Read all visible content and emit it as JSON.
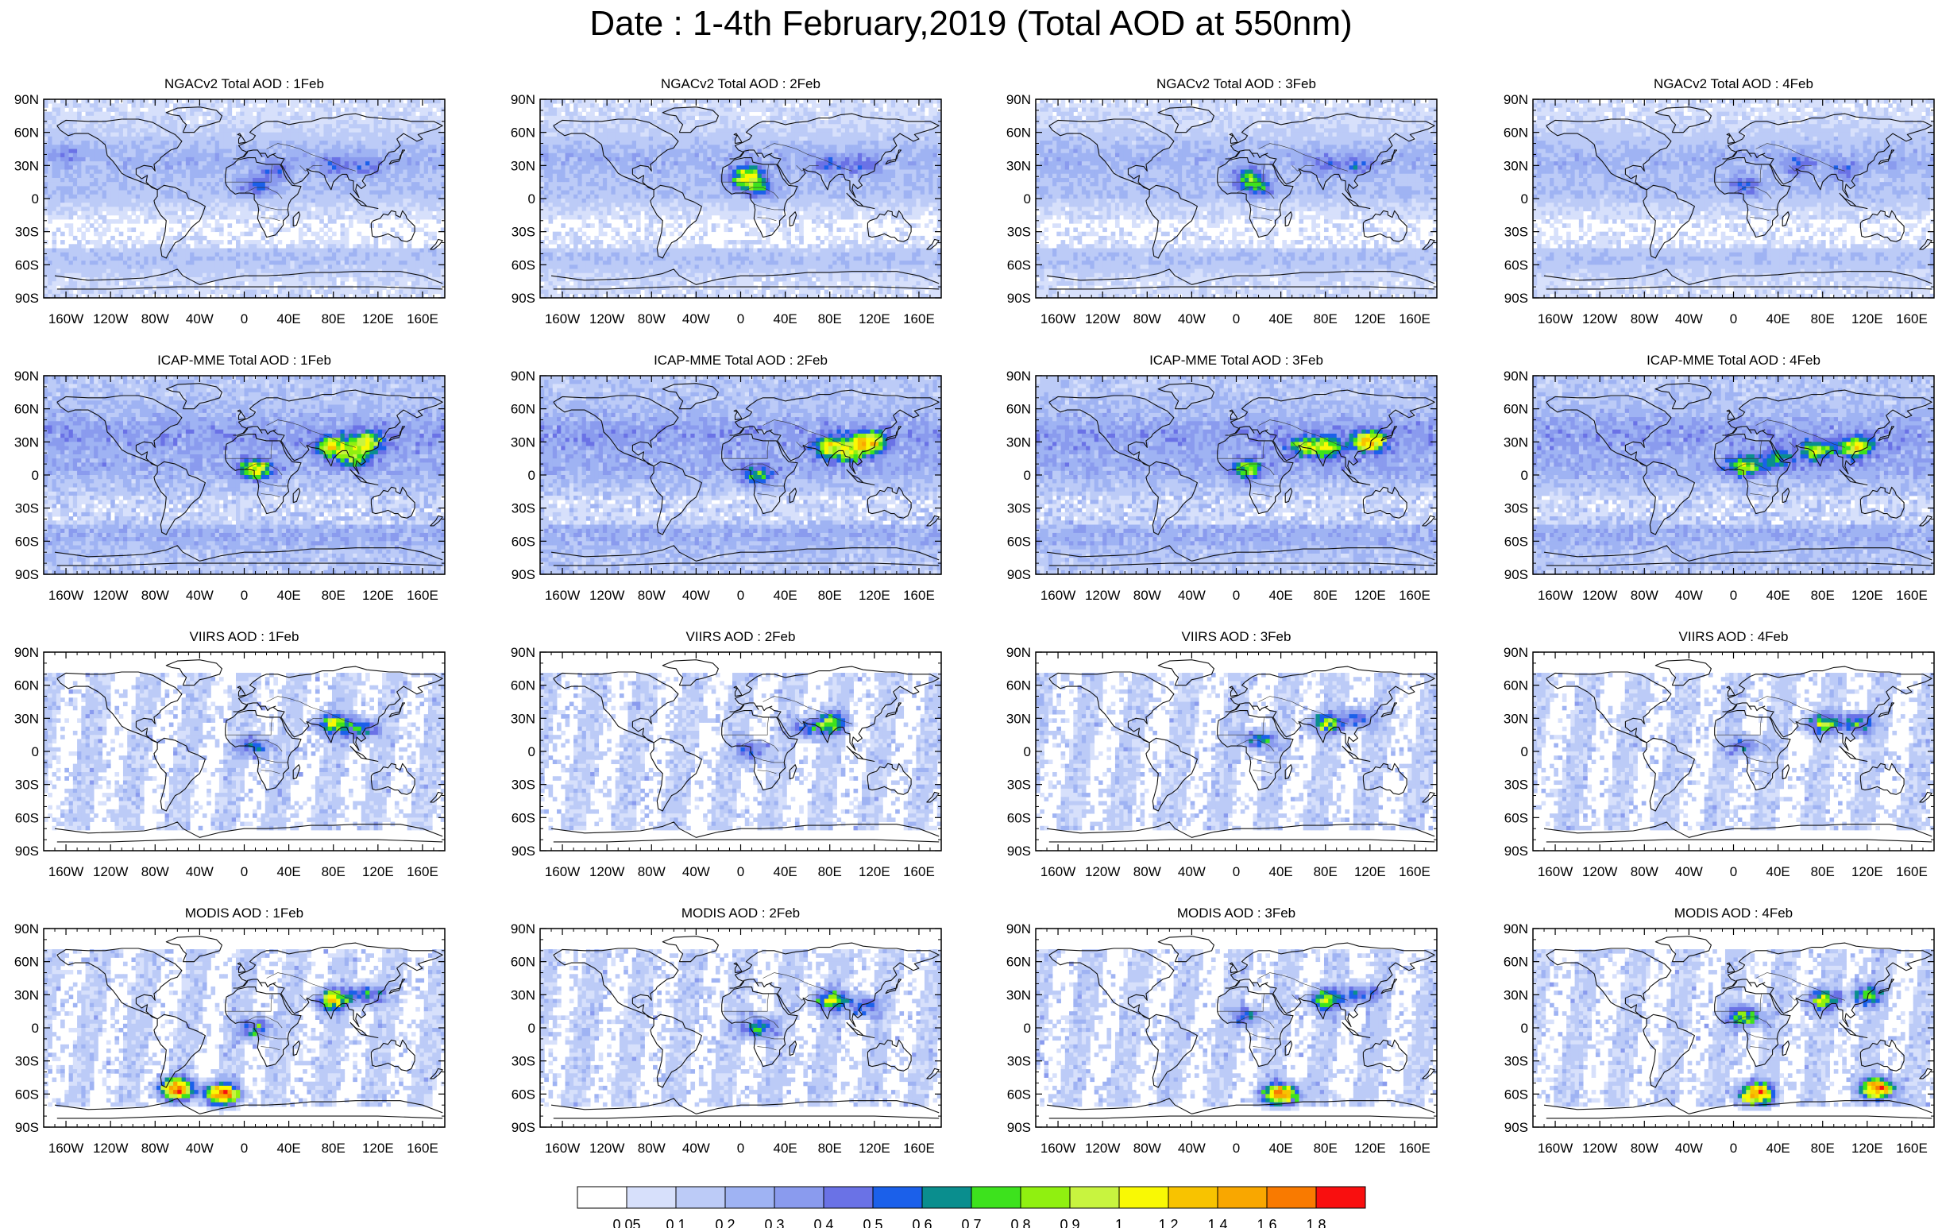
{
  "figure": {
    "title": "Date : 1-4th February,2019 (Total AOD at 550nm)"
  },
  "panels": {
    "lat_labels": [
      "90N",
      "60N",
      "30N",
      "0",
      "30S",
      "60S",
      "90S"
    ],
    "lon_labels": [
      "160W",
      "120W",
      "80W",
      "40W",
      "0",
      "40E",
      "80E",
      "120E",
      "160E"
    ],
    "lat_values": [
      90,
      60,
      30,
      0,
      -30,
      -60,
      -90
    ],
    "lon_values": [
      -160,
      -120,
      -80,
      -40,
      0,
      40,
      80,
      120,
      160
    ],
    "rows": [
      {
        "product": "NGACv2",
        "titles": [
          "NGACv2 Total AOD : 1Feb",
          "NGACv2 Total AOD : 2Feb",
          "NGACv2 Total AOD : 3Feb",
          "NGACv2 Total AOD : 4Feb"
        ],
        "background_level": 0.1,
        "fill": "continuous",
        "hotspots": [
          [
            [
              10,
              12,
              0.4
            ],
            [
              30,
              25,
              0.3
            ],
            [
              80,
              30,
              0.3
            ],
            [
              110,
              28,
              0.3
            ],
            [
              -160,
              40,
              0.2
            ]
          ],
          [
            [
              5,
              20,
              1.0
            ],
            [
              15,
              10,
              0.5
            ],
            [
              80,
              30,
              0.3
            ],
            [
              110,
              30,
              0.3
            ]
          ],
          [
            [
              10,
              18,
              0.6
            ],
            [
              20,
              10,
              0.4
            ],
            [
              80,
              30,
              0.3
            ],
            [
              110,
              30,
              0.3
            ]
          ],
          [
            [
              10,
              12,
              0.4
            ],
            [
              60,
              30,
              0.3
            ],
            [
              100,
              25,
              0.3
            ]
          ]
        ]
      },
      {
        "product": "ICAP-MME",
        "titles": [
          "ICAP-MME Total AOD : 1Feb",
          "ICAP-MME Total AOD : 2Feb",
          "ICAP-MME Total AOD : 3Feb",
          "ICAP-MME Total AOD : 4Feb"
        ],
        "background_level": 0.2,
        "fill": "continuous",
        "hotspots": [
          [
            [
              10,
              5,
              0.9
            ],
            [
              80,
              25,
              1.0
            ],
            [
              110,
              30,
              0.9
            ],
            [
              100,
              15,
              0.6
            ]
          ],
          [
            [
              15,
              0,
              0.6
            ],
            [
              80,
              25,
              0.9
            ],
            [
              115,
              30,
              1.2
            ],
            [
              100,
              20,
              0.7
            ]
          ],
          [
            [
              10,
              5,
              0.7
            ],
            [
              80,
              25,
              0.8
            ],
            [
              120,
              30,
              1.2
            ],
            [
              60,
              25,
              0.6
            ]
          ],
          [
            [
              10,
              8,
              0.9
            ],
            [
              75,
              22,
              0.8
            ],
            [
              110,
              25,
              0.9
            ],
            [
              40,
              15,
              0.5
            ]
          ]
        ]
      },
      {
        "product": "VIIRS",
        "titles": [
          "VIIRS AOD : 1Feb",
          "VIIRS AOD : 2Feb",
          "VIIRS AOD : 3Feb",
          "VIIRS AOD : 4Feb"
        ],
        "background_level": 0.05,
        "fill": "swath",
        "hotspots": [
          [
            [
              80,
              25,
              1.0
            ],
            [
              105,
              20,
              0.7
            ],
            [
              10,
              5,
              0.6
            ]
          ],
          [
            [
              80,
              25,
              0.9
            ],
            [
              10,
              0,
              0.6
            ],
            [
              60,
              20,
              0.5
            ]
          ],
          [
            [
              80,
              25,
              0.9
            ],
            [
              20,
              10,
              0.6
            ],
            [
              110,
              30,
              0.6
            ]
          ],
          [
            [
              80,
              25,
              0.9
            ],
            [
              110,
              25,
              0.8
            ],
            [
              10,
              5,
              0.5
            ]
          ]
        ]
      },
      {
        "product": "MODIS",
        "titles": [
          "MODIS AOD : 1Feb",
          "MODIS AOD : 2Feb",
          "MODIS AOD : 3Feb",
          "MODIS AOD : 4Feb"
        ],
        "background_level": 0.05,
        "fill": "swath",
        "hotspots": [
          [
            [
              80,
              25,
              1.2
            ],
            [
              10,
              0,
              0.7
            ],
            [
              110,
              30,
              0.7
            ],
            [
              -60,
              -55,
              1.8
            ],
            [
              -20,
              -60,
              1.8
            ]
          ],
          [
            [
              80,
              25,
              0.9
            ],
            [
              15,
              0,
              0.8
            ],
            [
              110,
              20,
              0.6
            ]
          ],
          [
            [
              80,
              25,
              1.0
            ],
            [
              10,
              10,
              0.6
            ],
            [
              40,
              -60,
              1.8
            ],
            [
              110,
              30,
              0.6
            ]
          ],
          [
            [
              80,
              25,
              0.9
            ],
            [
              10,
              10,
              1.0
            ],
            [
              120,
              30,
              0.8
            ],
            [
              20,
              -60,
              1.8
            ],
            [
              130,
              -55,
              1.8
            ]
          ]
        ]
      }
    ]
  },
  "colorbar": {
    "labels": [
      "0.05",
      "0.1",
      "0.2",
      "0.3",
      "0.4",
      "0.5",
      "0.6",
      "0.7",
      "0.8",
      "0.9",
      "1",
      "1.2",
      "1.4",
      "1.6",
      "1.8"
    ],
    "levels": [
      0.05,
      0.1,
      0.2,
      0.3,
      0.4,
      0.5,
      0.6,
      0.7,
      0.8,
      0.9,
      1,
      1.2,
      1.4,
      1.6,
      1.8
    ],
    "colors": [
      "#ffffff",
      "#d7e0fb",
      "#bccbf7",
      "#9fb3f3",
      "#8a9bee",
      "#6a72e6",
      "#1b60ea",
      "#0a8e8e",
      "#3de21d",
      "#90f010",
      "#c8f43f",
      "#f9f904",
      "#f8c300",
      "#f9a700",
      "#f97a00",
      "#f90f0f"
    ]
  }
}
